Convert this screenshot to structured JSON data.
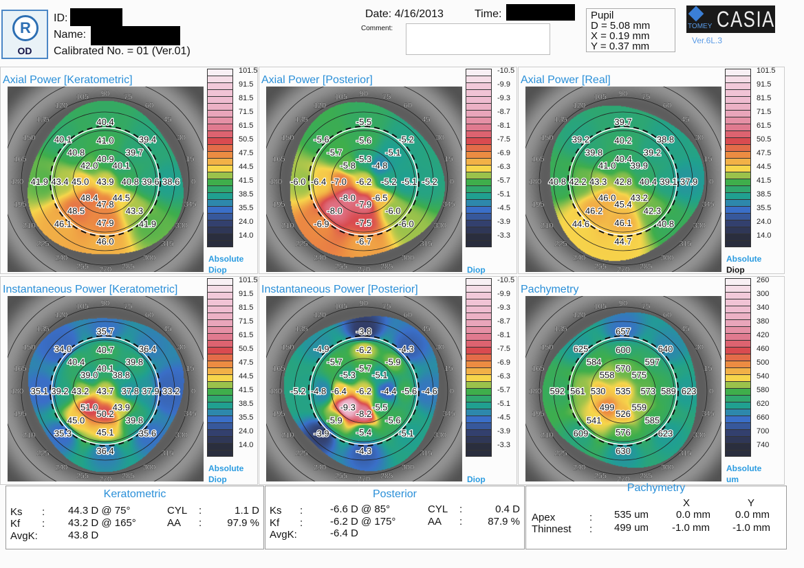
{
  "header": {
    "eye_badge": "R",
    "eye_label": "OD",
    "id_label": "ID:",
    "name_label": "Name:",
    "calibrated": "Calibrated No. = 01 (Ver.01)",
    "date": "Date: 4/16/2013",
    "time_label": "Time:",
    "comment_label": "Comment:",
    "pupil": {
      "title": "Pupil",
      "d": "D = 5.08 mm",
      "x": "X = 0.19 mm",
      "y": "Y = 0.37 mm"
    },
    "brand": {
      "company": "TOMEY",
      "product": "CASIA",
      "version": "Ver.6L.3"
    }
  },
  "colors": {
    "title_blue": "#2a8fd8",
    "scale": [
      "#f8f0f4",
      "#f2c9d9",
      "#efbcd0",
      "#e9a5ba",
      "#e07a8f",
      "#d94b50",
      "#ec8c42",
      "#f7d64b",
      "#3fae4b",
      "#20a090",
      "#3a6fc8",
      "#33406e",
      "#2a2e3e"
    ]
  },
  "angle_labels": [
    "0",
    "15",
    "30",
    "45",
    "60",
    "75",
    "90",
    "105",
    "120",
    "135",
    "150",
    "165",
    "180",
    "195",
    "210",
    "225",
    "240",
    "255",
    "270",
    "285",
    "300",
    "315",
    "330",
    "345"
  ],
  "maps": [
    {
      "title": "Axial Power [Keratometric]",
      "scale_labels": [
        "101.5",
        "91.5",
        "81.5",
        "71.5",
        "61.5",
        "50.5",
        "47.5",
        "44.5",
        "41.5",
        "38.5",
        "35.5",
        "24.0",
        "14.0"
      ],
      "units": [
        "Absolute",
        "Diop"
      ],
      "center": "43.9",
      "rings": [
        [
          "40.9",
          "40.1",
          "40.8",
          "44.5",
          "47.8",
          "48.4",
          "45.0",
          "42.0"
        ],
        [
          "41.0",
          "39.7",
          "39.6",
          "43.3",
          "47.9",
          "48.5",
          "43.4",
          "40.8"
        ],
        [
          "40.4",
          "39.4",
          "38.6",
          "41.9",
          "46.0",
          "46.1",
          "41.9",
          "40.1"
        ]
      ]
    },
    {
      "title": "Axial Power [Posterior]",
      "scale_labels": [
        "-10.5",
        "-9.9",
        "-9.3",
        "-8.7",
        "-8.1",
        "-7.5",
        "-6.9",
        "-6.3",
        "-5.7",
        "-5.1",
        "-4.5",
        "-3.9",
        "-3.3"
      ],
      "units": [
        "",
        "Diop"
      ],
      "center": "-6.2",
      "rings": [
        [
          "-5.3",
          "-4.8",
          "-5.2",
          "-6.5",
          "-7.9",
          "-8.0",
          "-7.0",
          "-5.8"
        ],
        [
          "-5.6",
          "-5.1",
          "-5.1",
          "-6.0",
          "-7.5",
          "-8.0",
          "-6.4",
          "-5.7"
        ],
        [
          "-5.5",
          "-5.2",
          "-5.2",
          "-6.0",
          "-6.7",
          "-6.9",
          "-6.0",
          "-5.6"
        ]
      ]
    },
    {
      "title": "Axial Power [Real]",
      "scale_labels": [
        "101.5",
        "91.5",
        "81.5",
        "71.5",
        "61.5",
        "50.5",
        "47.5",
        "44.5",
        "41.5",
        "38.5",
        "35.5",
        "24.0",
        "14.0"
      ],
      "units": [
        "Absolute",
        "Diop"
      ],
      "center": "42.8",
      "rings": [
        [
          "40.4",
          "39.9",
          "40.4",
          "43.2",
          "45.4",
          "46.0",
          "43.3",
          "41.0"
        ],
        [
          "40.2",
          "39.2",
          "39.1",
          "42.3",
          "46.1",
          "46.2",
          "42.2",
          "39.8"
        ],
        [
          "39.7",
          "38.8",
          "37.9",
          "40.8",
          "44.7",
          "44.6",
          "40.8",
          "39.2"
        ]
      ]
    },
    {
      "title": "Instantaneous Power [Keratometric]",
      "scale_labels": [
        "101.5",
        "91.5",
        "81.5",
        "71.5",
        "61.5",
        "50.5",
        "47.5",
        "44.5",
        "41.5",
        "38.5",
        "35.5",
        "24.0",
        "14.0"
      ],
      "units": [
        "Absolute",
        "Diop"
      ],
      "center": "43.7",
      "rings": [
        [
          "40.1",
          "38.8",
          "37.8",
          "43.9",
          "50.2",
          "51.0",
          "43.2",
          "39.0"
        ],
        [
          "40.7",
          "39.8",
          "37.9",
          "39.8",
          "45.1",
          "45.0",
          "39.2",
          "40.4"
        ],
        [
          "35.7",
          "36.4",
          "33.2",
          "35.6",
          "36.4",
          "35.3",
          "35.1",
          "34.0"
        ]
      ]
    },
    {
      "title": "Instantaneous Power [Posterior]",
      "scale_labels": [
        "-10.5",
        "-9.9",
        "-9.3",
        "-8.7",
        "-8.1",
        "-7.5",
        "-6.9",
        "-6.3",
        "-5.7",
        "-5.1",
        "-4.5",
        "-3.9",
        "-3.3"
      ],
      "units": [
        "",
        "Diop"
      ],
      "center": "-6.2",
      "rings": [
        [
          "-5.7",
          "-5.1",
          "-4.4",
          "-5.5",
          "-8.2",
          "-9.3",
          "-6.4",
          "-5.3"
        ],
        [
          "-6.2",
          "-5.9",
          "-5.6",
          "-5.6",
          "-5.4",
          "-5.9",
          "-4.8",
          "-5.7"
        ],
        [
          "-3.8",
          "-4.3",
          "-4.6",
          "-5.1",
          "-4.3",
          "-3.9",
          "-5.2",
          "-4.9"
        ]
      ]
    },
    {
      "title": "Pachymetry",
      "scale_labels": [
        "260",
        "300",
        "340",
        "380",
        "420",
        "460",
        "500",
        "540",
        "580",
        "620",
        "660",
        "700",
        "740"
      ],
      "units": [
        "Absolute",
        "um"
      ],
      "center": "535",
      "rings": [
        [
          "570",
          "575",
          "573",
          "559",
          "526",
          "499",
          "530",
          "558"
        ],
        [
          "600",
          "597",
          "589",
          "585",
          "576",
          "541",
          "561",
          "584"
        ],
        [
          "657",
          "640",
          "623",
          "623",
          "630",
          "609",
          "592",
          "625"
        ]
      ]
    }
  ],
  "summary": {
    "keratometric": {
      "title": "Keratometric",
      "ks_label": "Ks",
      "ks": "44.3 D @ 75°",
      "kf_label": "Kf",
      "kf": "43.2 D @ 165°",
      "avgk_label": "AvgK:",
      "avgk": "43.8 D",
      "cyl_label": "CYL",
      "cyl": "1.1 D",
      "aa_label": "AA",
      "aa": "97.9 %"
    },
    "posterior": {
      "title": "Posterior",
      "ks_label": "Ks",
      "ks": "-6.6 D @ 85°",
      "kf_label": "Kf",
      "kf": "-6.2 D @ 175°",
      "avgk_label": "AvgK:",
      "avgk": "-6.4 D",
      "cyl_label": "CYL",
      "cyl": "0.4 D",
      "aa_label": "AA",
      "aa": "87.9 %"
    },
    "pachymetry": {
      "title": "Pachymetry",
      "x_header": "X",
      "y_header": "Y",
      "rows": [
        {
          "label": "Apex",
          "value": "535 um",
          "x": "0.0 mm",
          "y": "0.0 mm"
        },
        {
          "label": "Thinnest",
          "value": "499 um",
          "x": "-1.0 mm",
          "y": "-1.0 mm"
        }
      ]
    }
  }
}
